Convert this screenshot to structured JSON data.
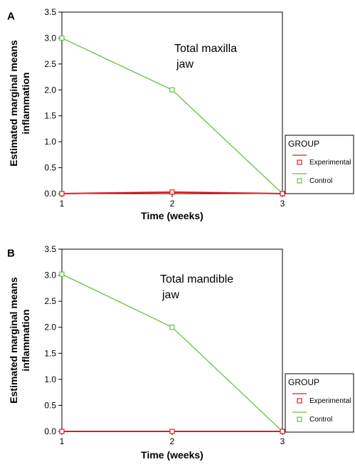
{
  "chart_data": [
    {
      "panel": "A",
      "type": "line",
      "annotation_lines": [
        "Total maxilla",
        "jaw"
      ],
      "xlabel": "Time (weeks)",
      "ylabel_lines": [
        "Estimated marginal means",
        "inflammation"
      ],
      "x": [
        1,
        2,
        3
      ],
      "xlim": [
        1,
        3
      ],
      "ylim": [
        0,
        3.5
      ],
      "yticks": [
        "0.0",
        "0.5",
        "1.0",
        "1.5",
        "2.0",
        "2.5",
        "3.0",
        "3.5"
      ],
      "xticks": [
        "1",
        "2",
        "3"
      ],
      "legend": {
        "title": "GROUP",
        "placement": "right"
      },
      "series": [
        {
          "name": "Experimental",
          "color": "#e41a1c",
          "values": [
            0.0,
            0.03,
            0.0
          ]
        },
        {
          "name": "Control",
          "color": "#6abf45",
          "values": [
            3.0,
            2.0,
            0.0
          ]
        }
      ]
    },
    {
      "panel": "B",
      "type": "line",
      "annotation_lines": [
        "Total mandible",
        "jaw"
      ],
      "xlabel": "Time (weeks)",
      "ylabel_lines": [
        "Estimated marginal means",
        "inflammation"
      ],
      "x": [
        1,
        2,
        3
      ],
      "xlim": [
        1,
        3
      ],
      "ylim": [
        0,
        3.5
      ],
      "yticks": [
        "0.0",
        "0.5",
        "1.0",
        "1.5",
        "2.0",
        "2.5",
        "3.0",
        "3.5"
      ],
      "xticks": [
        "1",
        "2",
        "3"
      ],
      "legend": {
        "title": "GROUP",
        "placement": "right"
      },
      "series": [
        {
          "name": "Experimental",
          "color": "#e41a1c",
          "values": [
            0.0,
            0.0,
            0.0
          ]
        },
        {
          "name": "Control",
          "color": "#6abf45",
          "values": [
            3.02,
            2.0,
            0.0
          ]
        }
      ]
    }
  ]
}
